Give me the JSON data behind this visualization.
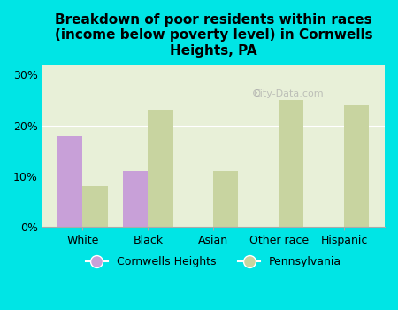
{
  "title": "Breakdown of poor residents within races\n(income below poverty level) in Cornwells\nHeights, PA",
  "categories": [
    "White",
    "Black",
    "Asian",
    "Other race",
    "Hispanic"
  ],
  "cornwells_values": [
    18,
    11,
    0,
    0,
    0
  ],
  "pennsylvania_values": [
    8,
    23,
    11,
    25,
    24
  ],
  "cornwells_color": "#c8a0d8",
  "pennsylvania_color": "#c8d4a0",
  "background_outer": "#00e5e5",
  "background_inner": "#e8f0d8",
  "yticks": [
    0,
    10,
    20,
    30
  ],
  "ytick_labels": [
    "0%",
    "10%",
    "20%",
    "30%"
  ],
  "ylim": [
    0,
    32
  ],
  "bar_width": 0.38,
  "legend_label1": "Cornwells Heights",
  "legend_label2": "Pennsylvania",
  "title_fontsize": 11,
  "tick_fontsize": 9,
  "legend_fontsize": 9,
  "watermark": "City-Data.com"
}
